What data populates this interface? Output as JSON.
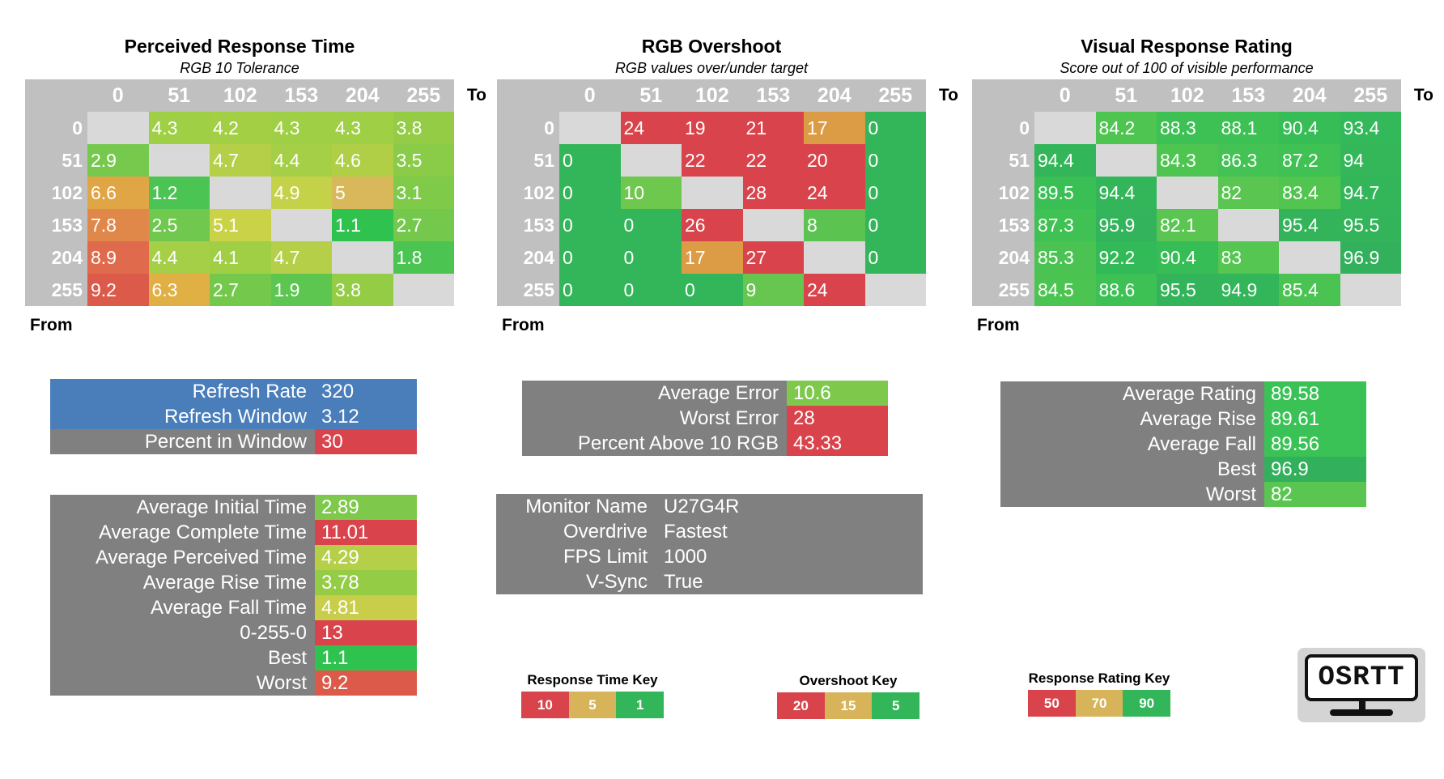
{
  "matrices": [
    {
      "id": "perceived",
      "title": "Perceived Response Time",
      "subtitle": "RGB 10 Tolerance",
      "to_label": "To",
      "from_label": "From",
      "columns": [
        "0",
        "51",
        "102",
        "153",
        "204",
        "255"
      ],
      "rows": [
        {
          "label": "0",
          "cells": [
            "",
            "4.3",
            "4.2",
            "4.3",
            "4.3",
            "3.8"
          ],
          "colors": [
            "#d9d9d9",
            "#9fcf45",
            "#a3cf45",
            "#9fcf45",
            "#9fcf45",
            "#94cc46"
          ]
        },
        {
          "label": "51",
          "cells": [
            "2.9",
            "",
            "4.7",
            "4.4",
            "4.6",
            "3.5"
          ],
          "colors": [
            "#76c94d",
            "#d9d9d9",
            "#b5cf48",
            "#a5cf46",
            "#b0cf47",
            "#8acb48"
          ]
        },
        {
          "label": "102",
          "cells": [
            "6.6",
            "1.2",
            "",
            "4.9",
            "5",
            "3.1"
          ],
          "colors": [
            "#e0a545",
            "#4cc453",
            "#d9d9d9",
            "#c4d24a",
            "#d8b85a",
            "#80ca4a"
          ]
        },
        {
          "label": "153",
          "cells": [
            "7.8",
            "2.5",
            "5.1",
            "",
            "1.1",
            "2.7"
          ],
          "colors": [
            "#e0874a",
            "#70c84e",
            "#cad247",
            "#d9d9d9",
            "#2fc24f",
            "#74c94d"
          ]
        },
        {
          "label": "204",
          "cells": [
            "8.9",
            "4.4",
            "4.1",
            "4.7",
            "",
            "1.8"
          ],
          "colors": [
            "#df6a4c",
            "#a5cf46",
            "#a0cf45",
            "#b5cf48",
            "#d9d9d9",
            "#4bc452"
          ]
        },
        {
          "label": "255",
          "cells": [
            "9.2",
            "6.3",
            "2.7",
            "1.9",
            "3.8",
            ""
          ],
          "colors": [
            "#dc5a4a",
            "#e0b044",
            "#74c94d",
            "#5cc650",
            "#94cc46",
            "#d9d9d9"
          ]
        }
      ]
    },
    {
      "id": "overshoot",
      "title": "RGB Overshoot",
      "subtitle": "RGB values over/under target",
      "to_label": "To",
      "from_label": "From",
      "columns": [
        "0",
        "51",
        "102",
        "153",
        "204",
        "255"
      ],
      "rows": [
        {
          "label": "0",
          "cells": [
            "",
            "24",
            "19",
            "21",
            "17",
            "0"
          ],
          "colors": [
            "#d9d9d9",
            "#d9434b",
            "#d9434b",
            "#d9434b",
            "#dc9b45",
            "#33b659"
          ]
        },
        {
          "label": "51",
          "cells": [
            "0",
            "",
            "22",
            "22",
            "20",
            "0"
          ],
          "colors": [
            "#33b659",
            "#d9d9d9",
            "#d9434b",
            "#d9434b",
            "#d9434b",
            "#33b659"
          ]
        },
        {
          "label": "102",
          "cells": [
            "0",
            "10",
            "",
            "28",
            "24",
            "0"
          ],
          "colors": [
            "#33b659",
            "#6fc84e",
            "#d9d9d9",
            "#d9434b",
            "#d9434b",
            "#33b659"
          ]
        },
        {
          "label": "153",
          "cells": [
            "0",
            "0",
            "26",
            "",
            "8",
            "0"
          ],
          "colors": [
            "#33b659",
            "#33b659",
            "#d9434b",
            "#d9d9d9",
            "#5bc451",
            "#33b659"
          ]
        },
        {
          "label": "204",
          "cells": [
            "0",
            "0",
            "17",
            "27",
            "",
            "0"
          ],
          "colors": [
            "#33b659",
            "#33b659",
            "#dc9b45",
            "#d9434b",
            "#d9d9d9",
            "#33b659"
          ]
        },
        {
          "label": "255",
          "cells": [
            "0",
            "0",
            "0",
            "9",
            "24",
            ""
          ],
          "colors": [
            "#33b659",
            "#33b659",
            "#33b659",
            "#66c64f",
            "#d9434b",
            "#d9d9d9"
          ]
        }
      ]
    },
    {
      "id": "rating",
      "title": "Visual Response Rating",
      "subtitle": "Score out of 100 of visible performance",
      "to_label": "To",
      "from_label": "From",
      "columns": [
        "0",
        "51",
        "102",
        "153",
        "204",
        "255"
      ],
      "rows": [
        {
          "label": "0",
          "cells": [
            "",
            "84.2",
            "88.3",
            "88.1",
            "90.4",
            "93.4"
          ],
          "colors": [
            "#d9d9d9",
            "#4ec451",
            "#3dc054",
            "#3dc054",
            "#36bd55",
            "#33b85a"
          ]
        },
        {
          "label": "51",
          "cells": [
            "94.4",
            "",
            "84.3",
            "86.3",
            "87.2",
            "94"
          ],
          "colors": [
            "#33b659",
            "#d9d9d9",
            "#4ec451",
            "#44c253",
            "#40c153",
            "#33b759"
          ]
        },
        {
          "label": "102",
          "cells": [
            "89.5",
            "94.4",
            "",
            "82",
            "83.4",
            "94.7"
          ],
          "colors": [
            "#3abf55",
            "#33b659",
            "#d9d9d9",
            "#5ac651",
            "#52c551",
            "#33b659"
          ]
        },
        {
          "label": "153",
          "cells": [
            "87.3",
            "95.9",
            "82.1",
            "",
            "95.4",
            "95.5"
          ],
          "colors": [
            "#40c153",
            "#33b35b",
            "#5ac651",
            "#d9d9d9",
            "#33b45b",
            "#33b45b"
          ]
        },
        {
          "label": "204",
          "cells": [
            "85.3",
            "92.2",
            "90.4",
            "83",
            "",
            "96.9"
          ],
          "colors": [
            "#4ac352",
            "#33ba58",
            "#36bd55",
            "#55c651",
            "#d9d9d9",
            "#33b05c"
          ]
        },
        {
          "label": "255",
          "cells": [
            "84.5",
            "88.6",
            "95.5",
            "94.9",
            "85.4",
            ""
          ],
          "colors": [
            "#4cc451",
            "#3dc054",
            "#33b45b",
            "#33b55a",
            "#4ac352",
            "#d9d9d9"
          ]
        }
      ]
    }
  ],
  "refresh_stats": [
    {
      "label": "Refresh Rate",
      "value": "320",
      "color": "#4a7ebb",
      "blue": true
    },
    {
      "label": "Refresh Window",
      "value": "3.12",
      "color": "#4a7ebb",
      "blue": true
    },
    {
      "label": "Percent in Window",
      "value": "30",
      "color": "#d9434b",
      "blue": false
    }
  ],
  "time_stats": [
    {
      "label": "Average Initial Time",
      "value": "2.89",
      "color": "#7ec94c"
    },
    {
      "label": "Average Complete Time",
      "value": "11.01",
      "color": "#d9434b"
    },
    {
      "label": "Average Perceived Time",
      "value": "4.29",
      "color": "#b5cf48"
    },
    {
      "label": "Average Rise Time",
      "value": "3.78",
      "color": "#94cc46"
    },
    {
      "label": "Average Fall Time",
      "value": "4.81",
      "color": "#c8cd4a"
    },
    {
      "label": "0-255-0",
      "value": "13",
      "color": "#d9434b"
    },
    {
      "label": "Best",
      "value": "1.1",
      "color": "#2fc24f"
    },
    {
      "label": "Worst",
      "value": "9.2",
      "color": "#dc5a4a"
    }
  ],
  "overshoot_stats": [
    {
      "label": "Average Error",
      "value": "10.6",
      "color": "#7ec94c"
    },
    {
      "label": "Worst Error",
      "value": "28",
      "color": "#d9434b"
    },
    {
      "label": "Percent Above 10 RGB",
      "value": "43.33",
      "color": "#d9434b"
    }
  ],
  "monitor_info": [
    {
      "label": "Monitor Name",
      "value": "U27G4R"
    },
    {
      "label": "Overdrive",
      "value": "Fastest"
    },
    {
      "label": "FPS Limit",
      "value": "1000"
    },
    {
      "label": "V-Sync",
      "value": "True"
    }
  ],
  "rating_stats": [
    {
      "label": "Average Rating",
      "value": "89.58",
      "color": "#3ac256"
    },
    {
      "label": "Average Rise",
      "value": "89.61",
      "color": "#3ac256"
    },
    {
      "label": "Average Fall",
      "value": "89.56",
      "color": "#3ac256"
    },
    {
      "label": "Best",
      "value": "96.9",
      "color": "#33b05c"
    },
    {
      "label": "Worst",
      "value": "82",
      "color": "#5ac651"
    }
  ],
  "keys": [
    {
      "title": "Response Time Key",
      "items": [
        {
          "label": "10",
          "color": "#d9434b"
        },
        {
          "label": "5",
          "color": "#d7b45a"
        },
        {
          "label": "1",
          "color": "#33b659"
        }
      ]
    },
    {
      "title": "Overshoot Key",
      "items": [
        {
          "label": "20",
          "color": "#d9434b"
        },
        {
          "label": "15",
          "color": "#d7b45a"
        },
        {
          "label": "5",
          "color": "#33b659"
        }
      ]
    },
    {
      "title": "Response Rating Key",
      "items": [
        {
          "label": "50",
          "color": "#d9434b"
        },
        {
          "label": "70",
          "color": "#d7b45a"
        },
        {
          "label": "90",
          "color": "#33b659"
        }
      ]
    }
  ],
  "logo": {
    "text": "OSRTT",
    "icon": "monitor-icon"
  }
}
